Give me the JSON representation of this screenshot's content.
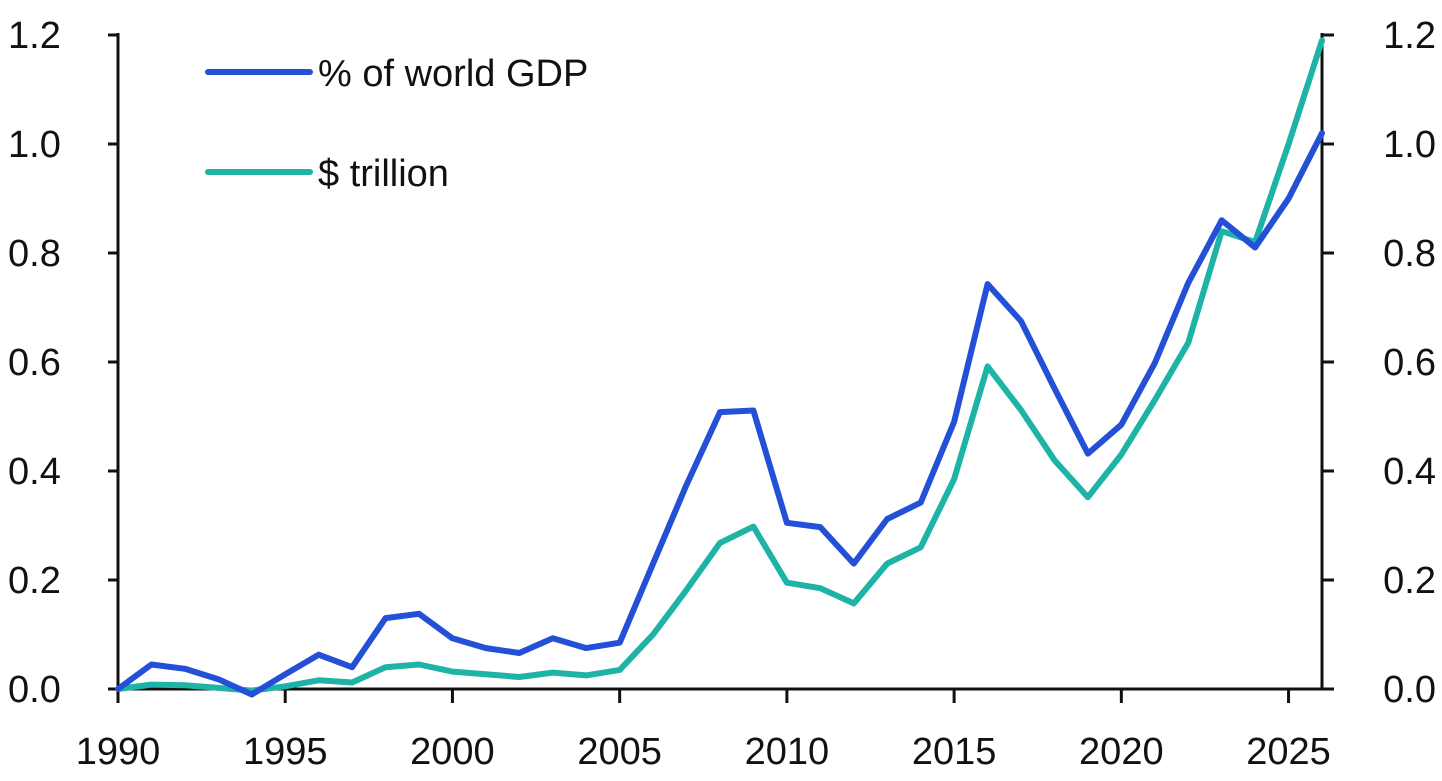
{
  "chart_data": {
    "type": "line",
    "title": "",
    "xlabel": "",
    "ylabel": "",
    "xlim": [
      1990,
      2026
    ],
    "ylim": [
      0,
      1.2
    ],
    "y2lim": [
      0,
      1.2
    ],
    "x_ticks": [
      "1990",
      "1995",
      "2000",
      "2005",
      "2010",
      "2015",
      "2020",
      "2025"
    ],
    "y_ticks": [
      "0.0",
      "0.2",
      "0.4",
      "0.6",
      "0.8",
      "1.0",
      "1.2"
    ],
    "y2_ticks": [
      "0.0",
      "0.2",
      "0.4",
      "0.6",
      "0.8",
      "1.0",
      "1.2"
    ],
    "grid": false,
    "legend_position": "top-left",
    "x": [
      1990,
      1991,
      1992,
      1993,
      1994,
      1995,
      1996,
      1997,
      1998,
      1999,
      2000,
      2001,
      2002,
      2003,
      2004,
      2005,
      2006,
      2007,
      2008,
      2009,
      2010,
      2011,
      2012,
      2013,
      2014,
      2015,
      2016,
      2017,
      2018,
      2019,
      2020,
      2021,
      2022,
      2023,
      2024,
      2025,
      2026
    ],
    "series": [
      {
        "name": "% of world GDP",
        "color": "#2350d6",
        "axis": "left",
        "values": [
          0.0,
          0.045,
          0.037,
          0.018,
          -0.01,
          0.027,
          0.063,
          0.04,
          0.13,
          0.138,
          0.093,
          0.075,
          0.066,
          0.093,
          0.075,
          0.085,
          0.23,
          0.375,
          0.508,
          0.511,
          0.305,
          0.297,
          0.23,
          0.312,
          0.342,
          0.49,
          0.743,
          0.675,
          0.552,
          0.432,
          0.485,
          0.598,
          0.745,
          0.86,
          0.81,
          0.9,
          1.02
        ]
      },
      {
        "name": "$ trillion",
        "color": "#1db3a6",
        "axis": "right",
        "values": [
          0.0,
          0.008,
          0.007,
          0.002,
          -0.003,
          0.005,
          0.016,
          0.012,
          0.04,
          0.045,
          0.032,
          0.027,
          0.022,
          0.03,
          0.025,
          0.035,
          0.1,
          0.182,
          0.268,
          0.298,
          0.195,
          0.185,
          0.157,
          0.23,
          0.26,
          0.385,
          0.592,
          0.512,
          0.42,
          0.352,
          0.43,
          0.53,
          0.635,
          0.84,
          0.82,
          1.0,
          1.19
        ]
      }
    ]
  }
}
